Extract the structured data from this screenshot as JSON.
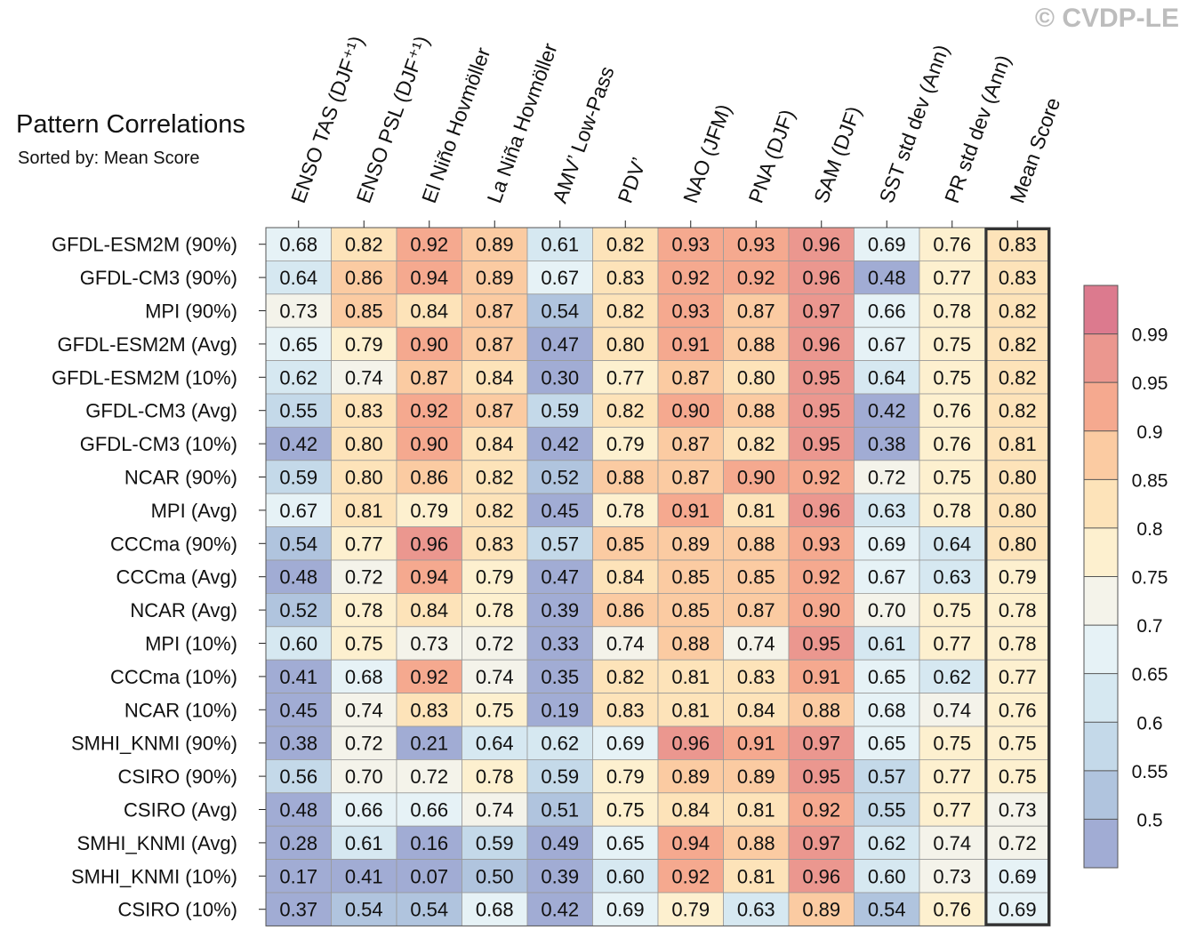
{
  "watermark": "© CVDP-LE",
  "title": "Pattern Correlations",
  "subtitle": "Sorted by: Mean Score",
  "chart_data": {
    "type": "heatmap",
    "columns": [
      "ENSO TAS (DJF⁺¹)",
      "ENSO PSL (DJF⁺¹)",
      "El Niño Hovmöller",
      "La Niña Hovmöller",
      "AMV’ Low-Pass",
      "PDV’",
      "NAO (JFM)",
      "PNA (DJF)",
      "SAM (DJF)",
      "SST std dev (Ann)",
      "PR std dev (Ann)",
      "Mean Score"
    ],
    "rows": [
      {
        "label": "GFDL-ESM2M (90%)",
        "values": [
          0.68,
          0.82,
          0.92,
          0.89,
          0.61,
          0.82,
          0.93,
          0.93,
          0.96,
          0.69,
          0.76,
          0.83
        ]
      },
      {
        "label": "GFDL-CM3 (90%)",
        "values": [
          0.64,
          0.86,
          0.94,
          0.89,
          0.67,
          0.83,
          0.92,
          0.92,
          0.96,
          0.48,
          0.77,
          0.83
        ]
      },
      {
        "label": "MPI (90%)",
        "values": [
          0.73,
          0.85,
          0.84,
          0.87,
          0.54,
          0.82,
          0.93,
          0.87,
          0.97,
          0.66,
          0.78,
          0.82
        ]
      },
      {
        "label": "GFDL-ESM2M (Avg)",
        "values": [
          0.65,
          0.79,
          0.9,
          0.87,
          0.47,
          0.8,
          0.91,
          0.88,
          0.96,
          0.67,
          0.75,
          0.82
        ]
      },
      {
        "label": "GFDL-ESM2M (10%)",
        "values": [
          0.62,
          0.74,
          0.87,
          0.84,
          0.3,
          0.77,
          0.87,
          0.8,
          0.95,
          0.64,
          0.75,
          0.82
        ]
      },
      {
        "label": "GFDL-CM3 (Avg)",
        "values": [
          0.55,
          0.83,
          0.92,
          0.87,
          0.59,
          0.82,
          0.9,
          0.88,
          0.95,
          0.42,
          0.76,
          0.82
        ]
      },
      {
        "label": "GFDL-CM3 (10%)",
        "values": [
          0.42,
          0.8,
          0.9,
          0.84,
          0.42,
          0.79,
          0.87,
          0.82,
          0.95,
          0.38,
          0.76,
          0.81
        ]
      },
      {
        "label": "NCAR (90%)",
        "values": [
          0.59,
          0.8,
          0.86,
          0.82,
          0.52,
          0.88,
          0.87,
          0.9,
          0.92,
          0.72,
          0.75,
          0.8
        ]
      },
      {
        "label": "MPI (Avg)",
        "values": [
          0.67,
          0.81,
          0.79,
          0.82,
          0.45,
          0.78,
          0.91,
          0.81,
          0.96,
          0.63,
          0.78,
          0.8
        ]
      },
      {
        "label": "CCCma (90%)",
        "values": [
          0.54,
          0.77,
          0.96,
          0.83,
          0.57,
          0.85,
          0.89,
          0.88,
          0.93,
          0.69,
          0.64,
          0.8
        ]
      },
      {
        "label": "CCCma (Avg)",
        "values": [
          0.48,
          0.72,
          0.94,
          0.79,
          0.47,
          0.84,
          0.85,
          0.85,
          0.92,
          0.67,
          0.63,
          0.79
        ]
      },
      {
        "label": "NCAR (Avg)",
        "values": [
          0.52,
          0.78,
          0.84,
          0.78,
          0.39,
          0.86,
          0.85,
          0.87,
          0.9,
          0.7,
          0.75,
          0.78
        ]
      },
      {
        "label": "MPI (10%)",
        "values": [
          0.6,
          0.75,
          0.73,
          0.72,
          0.33,
          0.74,
          0.88,
          0.74,
          0.95,
          0.61,
          0.77,
          0.78
        ]
      },
      {
        "label": "CCCma (10%)",
        "values": [
          0.41,
          0.68,
          0.92,
          0.74,
          0.35,
          0.82,
          0.81,
          0.83,
          0.91,
          0.65,
          0.62,
          0.77
        ]
      },
      {
        "label": "NCAR (10%)",
        "values": [
          0.45,
          0.74,
          0.83,
          0.75,
          0.19,
          0.83,
          0.81,
          0.84,
          0.88,
          0.68,
          0.74,
          0.76
        ]
      },
      {
        "label": "SMHI_KNMI (90%)",
        "values": [
          0.38,
          0.72,
          0.21,
          0.64,
          0.62,
          0.69,
          0.96,
          0.91,
          0.97,
          0.65,
          0.75,
          0.75
        ]
      },
      {
        "label": "CSIRO (90%)",
        "values": [
          0.56,
          0.7,
          0.72,
          0.78,
          0.59,
          0.79,
          0.89,
          0.89,
          0.95,
          0.57,
          0.77,
          0.75
        ]
      },
      {
        "label": "CSIRO (Avg)",
        "values": [
          0.48,
          0.66,
          0.66,
          0.74,
          0.51,
          0.75,
          0.84,
          0.81,
          0.92,
          0.55,
          0.77,
          0.73
        ]
      },
      {
        "label": "SMHI_KNMI (Avg)",
        "values": [
          0.28,
          0.61,
          0.16,
          0.59,
          0.49,
          0.65,
          0.94,
          0.88,
          0.97,
          0.62,
          0.74,
          0.72
        ]
      },
      {
        "label": "SMHI_KNMI (10%)",
        "values": [
          0.17,
          0.41,
          0.07,
          0.5,
          0.39,
          0.6,
          0.92,
          0.81,
          0.96,
          0.6,
          0.73,
          0.69
        ]
      },
      {
        "label": "CSIRO (10%)",
        "values": [
          0.37,
          0.54,
          0.54,
          0.68,
          0.42,
          0.69,
          0.79,
          0.63,
          0.89,
          0.54,
          0.76,
          0.69
        ]
      }
    ],
    "highlight_column": "Mean Score",
    "colorbar": {
      "ticks": [
        "0.99",
        "0.95",
        "0.9",
        "0.85",
        "0.8",
        "0.75",
        "0.7",
        "0.65",
        "0.6",
        "0.55",
        "0.5"
      ],
      "colors_bottom_to_top": [
        "#a1acd4",
        "#b0c4de",
        "#c4d9e9",
        "#d6e8f1",
        "#e6f2f6",
        "#f4f3ea",
        "#fdf0cf",
        "#fde3b9",
        "#fbcba2",
        "#f5a98f",
        "#eb978f",
        "#dc7a8e"
      ]
    },
    "value_format": "2 decimals"
  }
}
